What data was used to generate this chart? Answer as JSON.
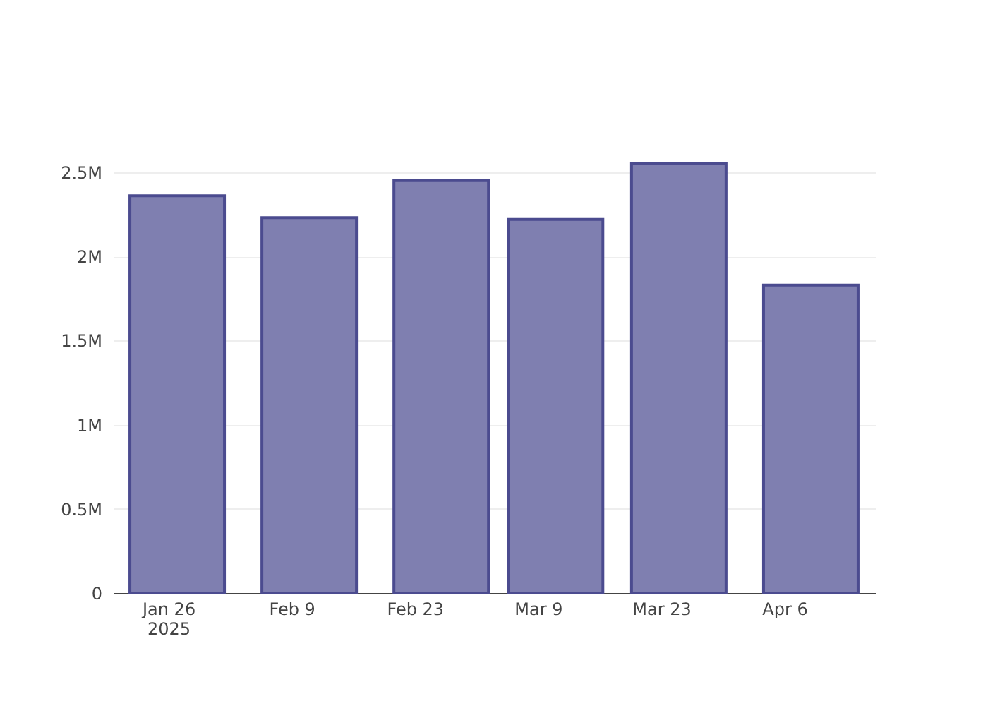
{
  "chart_data": {
    "type": "bar",
    "x": [
      "2025-01-27",
      "2025-02-11",
      "2025-02-26",
      "2025-03-11",
      "2025-03-25",
      "2025-04-09"
    ],
    "values": [
      2360000,
      2230000,
      2450000,
      2220000,
      2550000,
      1830000
    ],
    "color": "#7f7fb0",
    "xlim": [
      "2025-01-20T12:00",
      "2025-04-15T12:00"
    ],
    "xticks": [
      {
        "value": "2025-01-26",
        "label": "Jan 26\n2025"
      },
      {
        "value": "2025-02-09",
        "label": "Feb 9"
      },
      {
        "value": "2025-02-23",
        "label": "Feb 23"
      },
      {
        "value": "2025-03-09",
        "label": "Mar 9"
      },
      {
        "value": "2025-03-23",
        "label": "Mar 23"
      },
      {
        "value": "2025-04-06",
        "label": "Apr 6"
      }
    ],
    "yticks": [
      0,
      {
        "value": 500000,
        "label": "0.5M"
      },
      {
        "value": 1000000,
        "label": "1M"
      },
      {
        "value": 1500000,
        "label": "1.5M"
      },
      {
        "value": 2000000,
        "label": "2M"
      },
      {
        "value": 2500000,
        "label": "2.5M"
      }
    ],
    "ylim": [
      0,
      2550000
    ],
    "grid": "y"
  }
}
